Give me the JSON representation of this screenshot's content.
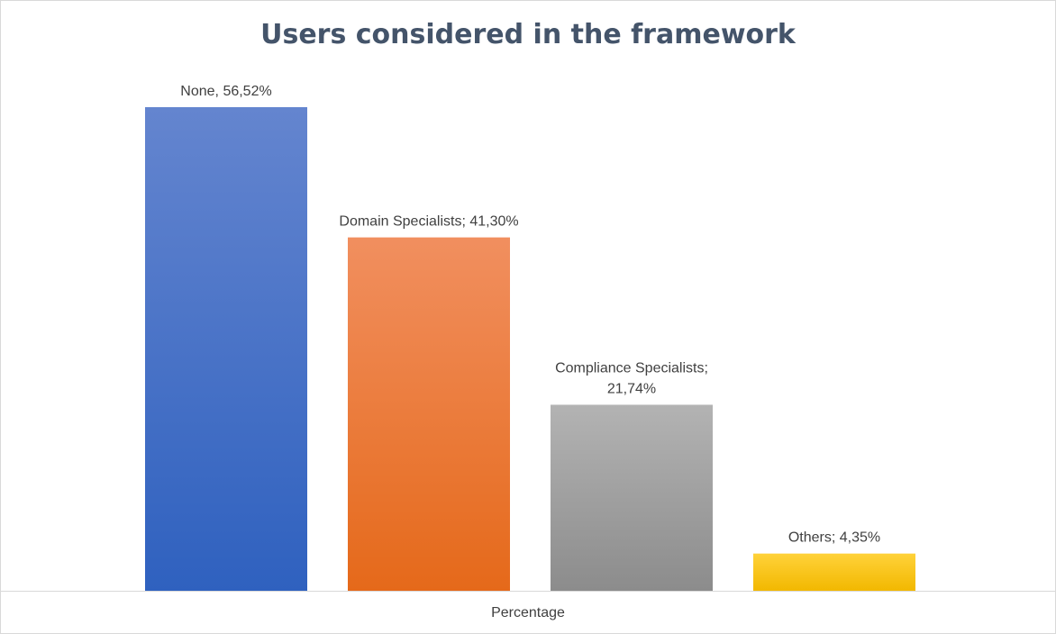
{
  "chart_data": {
    "type": "bar",
    "title": "Users considered in the framework",
    "xlabel": "Percentage",
    "ylabel": "",
    "ylim": [
      0,
      56.52
    ],
    "grid": false,
    "legend": "none",
    "categories": [
      "None",
      "Domain Specialists",
      "Compliance Specialists",
      "Others"
    ],
    "values": [
      56.52,
      41.3,
      21.74,
      4.35
    ],
    "data_labels": [
      [
        "None, 56,52%"
      ],
      [
        "Domain Specialists; 41,30%"
      ],
      [
        "Compliance Specialists;",
        "21,74%"
      ],
      [
        "Others; 4,35%"
      ]
    ],
    "colors": [
      [
        "#6485cf",
        "#2f61bf"
      ],
      [
        "#f18f5f",
        "#e5691a"
      ],
      [
        "#b3b3b3",
        "#8c8c8c"
      ],
      [
        "#ffd23a",
        "#f2b800"
      ]
    ],
    "axis_color": "#d9d9d9"
  }
}
